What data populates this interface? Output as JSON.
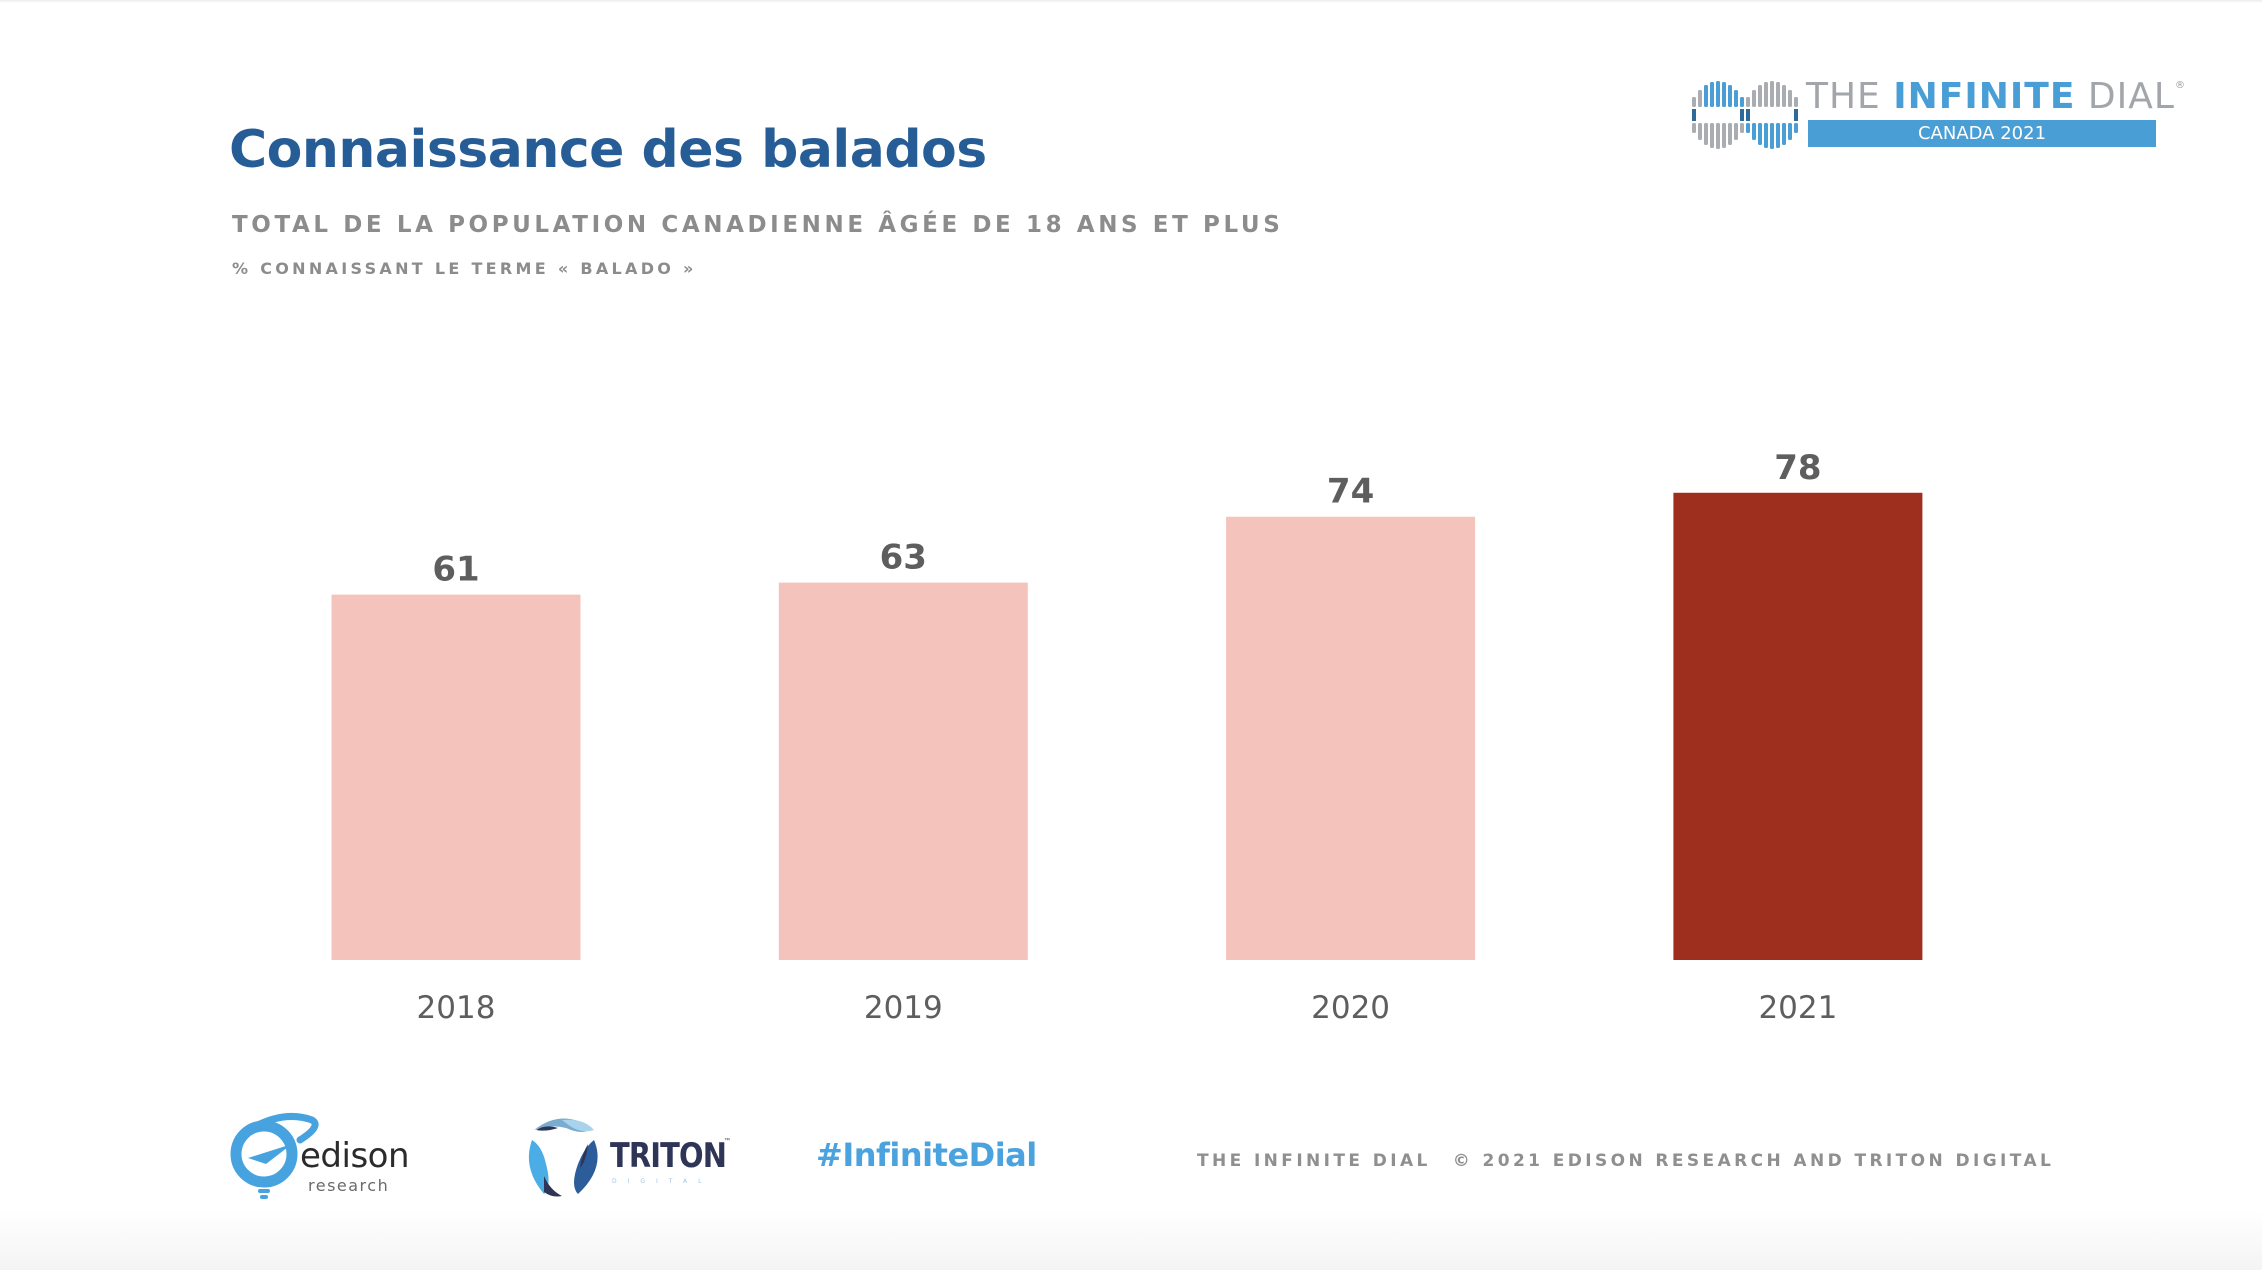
{
  "slide": {
    "title": "Connaissance des balados",
    "subtitle": "TOTAL DE LA POPULATION CANADIENNE ÂGÉE DE 18 ANS ET PLUS",
    "measure": "% CONNAISSANT LE TERME « BALADO »"
  },
  "brand": {
    "the": "THE",
    "infinite": "INFINITE",
    "dial": "DIAL",
    "registered": "®",
    "band": "CANADA 2021",
    "icon": "infinity-dial-icon"
  },
  "colors": {
    "title": "#275d96",
    "bar_default": "#f4c3bb",
    "bar_highlight": "#9e2f1f",
    "labels": "#5e5e5e",
    "brand_blue": "#4a9ed6"
  },
  "chart_data": {
    "type": "bar",
    "title": "Connaissance des balados",
    "subtitle": "TOTAL DE LA POPULATION CANADIENNE ÂGÉE DE 18 ANS ET PLUS",
    "ylabel": "% CONNAISSANT LE TERME « BALADO »",
    "xlabel": "",
    "categories": [
      "2018",
      "2019",
      "2020",
      "2021"
    ],
    "values": [
      61,
      63,
      74,
      78
    ],
    "highlight": "2021",
    "ylim": [
      0,
      100
    ],
    "grid": false,
    "legend": "none",
    "data_labels": [
      "61",
      "63",
      "74",
      "78"
    ]
  },
  "footer": {
    "edison_word": "edison",
    "edison_sub": "research",
    "triton_word": "TRITON",
    "triton_tm": "™",
    "triton_sub": "DIGITAL",
    "hashtag": "#InfiniteDial",
    "series_name": "THE INFINITE DIAL",
    "copyright": "© 2021 EDISON RESEARCH AND TRITON DIGITAL"
  }
}
